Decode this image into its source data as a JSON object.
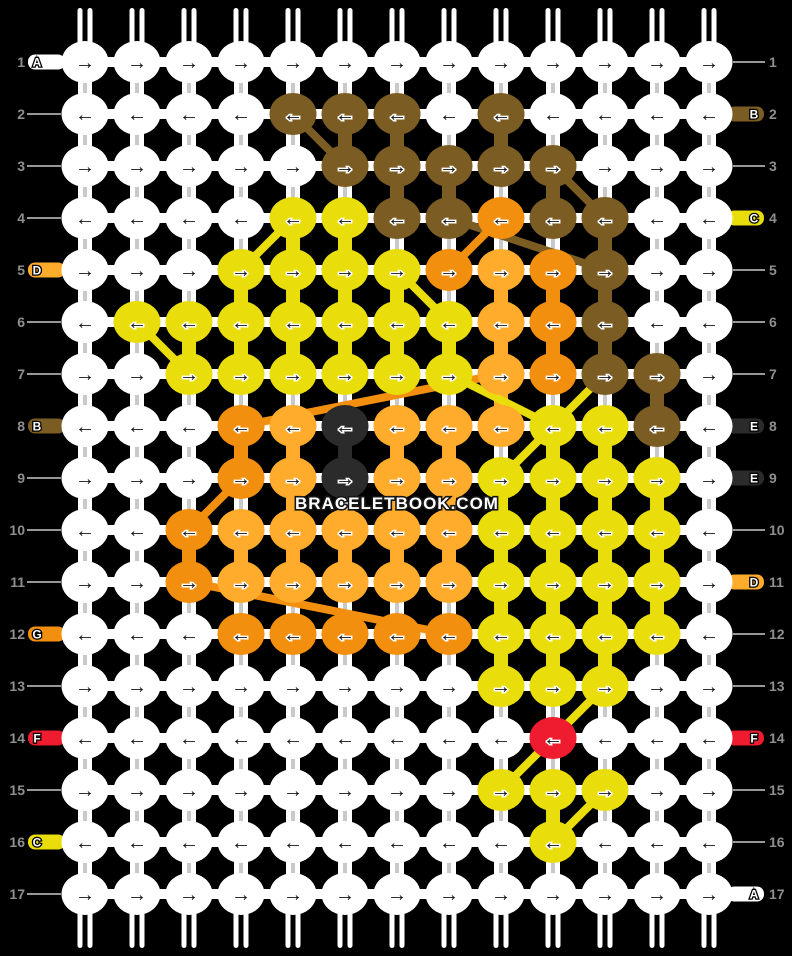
{
  "watermark": "BRACELETBOOK.COM",
  "palette": {
    "W": "#ffffff",
    "Y": "#e9dd0b",
    "A": "#ffac2c",
    "O": "#f28f0e",
    "B": "#7b5c22",
    "K": "#2b2b2b",
    "R": "#ee1c2e"
  },
  "grid": {
    "cols": 13,
    "rows": 17,
    "arrow_odd": "→",
    "arrow_even": "←",
    "row_colors": [
      "WWWWWWWWWWWWW",
      "WWWWBBBWBWWWW",
      "WWWWWBBBBBWWW",
      "WWWWYYBBOBBWW",
      "WWWYYYYOAOBWW",
      "WYYYYYYYAOBWW",
      "WWYYYYYYAOBBW",
      "WWWOAKAAAYYBW",
      "WWWOAKAAYYYYW",
      "WWOAAAAAYYYYW",
      "WWOAAAAAYYYYW",
      "WWWOOOOOYYYYW",
      "WWWWWWWWYYYWW",
      "WWWWWWWWWRWWW",
      "WWWWWWWWYYYWW",
      "WWWWWWWWWYWWW",
      "WWWWWWWWWWWWW"
    ]
  },
  "left_labels": [
    {
      "row": 1,
      "num": "1",
      "letter": "A",
      "bar": "W"
    },
    {
      "row": 2,
      "num": "2"
    },
    {
      "row": 3,
      "num": "3"
    },
    {
      "row": 4,
      "num": "4"
    },
    {
      "row": 5,
      "num": "5",
      "letter": "D",
      "bar": "A"
    },
    {
      "row": 6,
      "num": "6"
    },
    {
      "row": 7,
      "num": "7"
    },
    {
      "row": 8,
      "num": "8",
      "letter": "B",
      "bar": "B"
    },
    {
      "row": 9,
      "num": "9"
    },
    {
      "row": 10,
      "num": "10"
    },
    {
      "row": 11,
      "num": "11"
    },
    {
      "row": 12,
      "num": "12",
      "letter": "G",
      "bar": "O"
    },
    {
      "row": 13,
      "num": "13"
    },
    {
      "row": 14,
      "num": "14",
      "letter": "F",
      "bar": "R"
    },
    {
      "row": 15,
      "num": "15"
    },
    {
      "row": 16,
      "num": "16",
      "letter": "C",
      "bar": "Y"
    },
    {
      "row": 17,
      "num": "17"
    }
  ],
  "right_labels": [
    {
      "row": 1,
      "num": "1"
    },
    {
      "row": 2,
      "num": "2",
      "letter": "B",
      "bar": "B"
    },
    {
      "row": 3,
      "num": "3"
    },
    {
      "row": 4,
      "num": "4",
      "letter": "C",
      "bar": "Y"
    },
    {
      "row": 5,
      "num": "5"
    },
    {
      "row": 6,
      "num": "6"
    },
    {
      "row": 7,
      "num": "7"
    },
    {
      "row": 8,
      "num": "8",
      "letter": "E",
      "bar": "K"
    },
    {
      "row": 9,
      "num": "9",
      "letter": "E",
      "bar": "K"
    },
    {
      "row": 10,
      "num": "10"
    },
    {
      "row": 11,
      "num": "11",
      "letter": "D",
      "bar": "A"
    },
    {
      "row": 12,
      "num": "12"
    },
    {
      "row": 13,
      "num": "13"
    },
    {
      "row": 14,
      "num": "14",
      "letter": "F",
      "bar": "R"
    },
    {
      "row": 15,
      "num": "15"
    },
    {
      "row": 16,
      "num": "16"
    },
    {
      "row": 17,
      "num": "17",
      "letter": "A",
      "bar": "W"
    }
  ],
  "diagonals": [
    {
      "color": "B",
      "from": [
        2,
        5
      ],
      "to": [
        3,
        6
      ]
    },
    {
      "color": "B",
      "from": [
        3,
        10
      ],
      "to": [
        4,
        11
      ]
    },
    {
      "color": "B",
      "from": [
        4,
        8
      ],
      "to": [
        5,
        11
      ]
    },
    {
      "color": "O",
      "from": [
        4,
        9
      ],
      "to": [
        5,
        8
      ]
    },
    {
      "color": "Y",
      "from": [
        4,
        5
      ],
      "to": [
        5,
        4
      ]
    },
    {
      "color": "Y",
      "from": [
        5,
        7
      ],
      "to": [
        6,
        8
      ]
    },
    {
      "color": "Y",
      "from": [
        6,
        2
      ],
      "to": [
        7,
        3
      ]
    },
    {
      "color": "O",
      "from": [
        7,
        9
      ],
      "to": [
        8,
        4
      ]
    },
    {
      "color": "Y",
      "from": [
        7,
        8
      ],
      "to": [
        8,
        10
      ]
    },
    {
      "color": "Y",
      "from": [
        7,
        11
      ],
      "to": [
        8,
        10
      ]
    },
    {
      "color": "Y",
      "from": [
        8,
        10
      ],
      "to": [
        9,
        9
      ]
    },
    {
      "color": "O",
      "from": [
        9,
        4
      ],
      "to": [
        10,
        3
      ]
    },
    {
      "color": "O",
      "from": [
        11,
        3
      ],
      "to": [
        12,
        8
      ]
    },
    {
      "color": "Y",
      "from": [
        13,
        11
      ],
      "to": [
        14,
        10
      ]
    },
    {
      "color": "Y",
      "from": [
        14,
        10
      ],
      "to": [
        15,
        9
      ]
    },
    {
      "color": "Y",
      "from": [
        15,
        11
      ],
      "to": [
        16,
        10
      ]
    }
  ]
}
